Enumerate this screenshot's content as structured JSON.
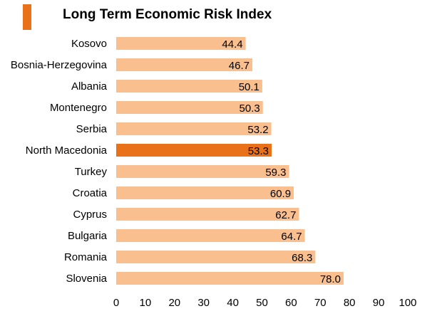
{
  "chart_data": {
    "type": "bar",
    "orientation": "horizontal",
    "title": "Long Term Economic Risk Index",
    "xlabel": "",
    "ylabel": "",
    "xlim": [
      0,
      100
    ],
    "xticks": [
      0,
      10,
      20,
      30,
      40,
      50,
      60,
      70,
      80,
      90,
      100
    ],
    "grid": false,
    "legend": "none",
    "colors": {
      "default": "#f9bf8f",
      "highlight": "#e8711a",
      "accent": "#e8711a"
    },
    "highlight": "North Macedonia",
    "categories": [
      "Kosovo",
      "Bosnia-Herzegovina",
      "Albania",
      "Montenegro",
      "Serbia",
      "North Macedonia",
      "Turkey",
      "Croatia",
      "Cyprus",
      "Bulgaria",
      "Romania",
      "Slovenia"
    ],
    "values": [
      44.4,
      46.7,
      50.1,
      50.3,
      53.2,
      53.3,
      59.3,
      60.9,
      62.7,
      64.7,
      68.3,
      78.0
    ],
    "value_labels": [
      "44.4",
      "46.7",
      "50.1",
      "50.3",
      "53.2",
      "53.3",
      "59.3",
      "60.9",
      "62.7",
      "64.7",
      "68.3",
      "78.0"
    ]
  }
}
